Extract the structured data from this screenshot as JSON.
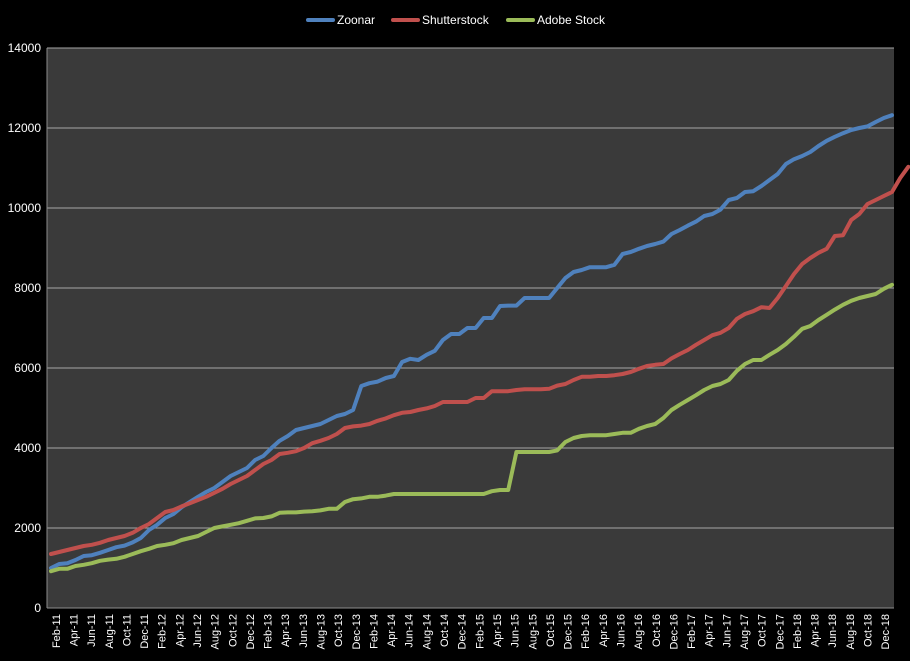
{
  "chart_data": {
    "type": "line",
    "title": "",
    "xlabel": "",
    "ylabel": "",
    "ylim": [
      0,
      14000
    ],
    "yticks": [
      0,
      2000,
      4000,
      6000,
      8000,
      10000,
      12000,
      14000
    ],
    "grid": "horizontal",
    "legend_position": "top-center",
    "x_tick_labels": [
      "Feb-11",
      "Apr-11",
      "Jun-11",
      "Aug-11",
      "Oct-11",
      "Dec-11",
      "Feb-12",
      "Apr-12",
      "Jun-12",
      "Aug-12",
      "Oct-12",
      "Dec-12",
      "Feb-13",
      "Apr-13",
      "Jun-13",
      "Aug-13",
      "Oct-13",
      "Dec-13",
      "Feb-14",
      "Apr-14",
      "Jun-14",
      "Aug-14",
      "Oct-14",
      "Dec-14",
      "Feb-15",
      "Apr-15",
      "Jun-15",
      "Aug-15",
      "Oct-15",
      "Dec-15",
      "Feb-16",
      "Apr-16",
      "Jun-16",
      "Aug-16",
      "Oct-16",
      "Dec-16",
      "Feb-17",
      "Apr-17",
      "Jun-17",
      "Aug-17",
      "Oct-17",
      "Dec-17",
      "Feb-18",
      "Apr-18",
      "Jun-18",
      "Aug-18",
      "Oct-18",
      "Dec-18"
    ],
    "colors": {
      "Zoonar": "#4f81bd",
      "Shutterstock": "#c0504d",
      "Adobe Stock": "#9bbb59"
    },
    "series": [
      {
        "name": "Zoonar",
        "values": [
          1000,
          1100,
          1120,
          1200,
          1300,
          1320,
          1380,
          1450,
          1520,
          1560,
          1640,
          1750,
          1950,
          2080,
          2250,
          2350,
          2520,
          2650,
          2780,
          2900,
          3000,
          3150,
          3300,
          3400,
          3500,
          3700,
          3800,
          4000,
          4180,
          4300,
          4450,
          4500,
          4550,
          4600,
          4700,
          4800,
          4850,
          4950,
          5550,
          5620,
          5660,
          5750,
          5800,
          6150,
          6230,
          6200,
          6330,
          6430,
          6700,
          6850,
          6850,
          7000,
          7000,
          7250,
          7250,
          7550,
          7560,
          7560,
          7750,
          7750,
          7750,
          7750,
          8000,
          8250,
          8400,
          8450,
          8520,
          8520,
          8520,
          8580,
          8850,
          8900,
          8980,
          9050,
          9100,
          9160,
          9350,
          9450,
          9560,
          9660,
          9800,
          9850,
          9960,
          10200,
          10250,
          10400,
          10420,
          10550,
          10700,
          10850,
          11100,
          11220,
          11300,
          11400,
          11550,
          11680,
          11780,
          11870,
          11950,
          12000,
          12040,
          12150,
          12250,
          12320
        ]
      },
      {
        "name": "Shutterstock",
        "values": [
          1350,
          1400,
          1450,
          1500,
          1550,
          1580,
          1630,
          1700,
          1750,
          1800,
          1880,
          2000,
          2100,
          2250,
          2400,
          2450,
          2540,
          2620,
          2700,
          2780,
          2880,
          2980,
          3100,
          3200,
          3300,
          3450,
          3600,
          3700,
          3850,
          3880,
          3920,
          4000,
          4120,
          4180,
          4250,
          4350,
          4500,
          4540,
          4560,
          4600,
          4680,
          4740,
          4820,
          4880,
          4900,
          4950,
          4990,
          5050,
          5150,
          5150,
          5150,
          5150,
          5250,
          5250,
          5420,
          5420,
          5420,
          5450,
          5470,
          5470,
          5470,
          5480,
          5560,
          5600,
          5700,
          5780,
          5780,
          5800,
          5800,
          5820,
          5850,
          5900,
          5980,
          6050,
          6080,
          6100,
          6240,
          6350,
          6450,
          6580,
          6700,
          6820,
          6880,
          7000,
          7230,
          7350,
          7420,
          7520,
          7500,
          7750,
          8050,
          8350,
          8600,
          8750,
          8880,
          8980,
          9300,
          9320,
          9700,
          9850,
          10100,
          10200,
          10300,
          10400,
          10750,
          11030
        ]
      },
      {
        "name": "Adobe Stock",
        "values": [
          920,
          980,
          980,
          1050,
          1080,
          1120,
          1180,
          1210,
          1230,
          1280,
          1350,
          1420,
          1480,
          1550,
          1580,
          1620,
          1700,
          1750,
          1800,
          1900,
          2000,
          2040,
          2080,
          2120,
          2180,
          2240,
          2250,
          2290,
          2380,
          2390,
          2390,
          2410,
          2420,
          2440,
          2480,
          2480,
          2650,
          2720,
          2740,
          2780,
          2780,
          2810,
          2850,
          2850,
          2850,
          2850,
          2850,
          2850,
          2850,
          2850,
          2850,
          2850,
          2850,
          2850,
          2920,
          2950,
          2950,
          3900,
          3900,
          3900,
          3900,
          3900,
          3940,
          4150,
          4250,
          4300,
          4320,
          4320,
          4320,
          4350,
          4380,
          4380,
          4480,
          4550,
          4600,
          4750,
          4950,
          5080,
          5200,
          5320,
          5450,
          5550,
          5600,
          5700,
          5930,
          6100,
          6200,
          6200,
          6330,
          6450,
          6600,
          6780,
          6980,
          7050,
          7200,
          7330,
          7460,
          7580,
          7680,
          7750,
          7800,
          7850,
          7980,
          8080
        ]
      }
    ]
  }
}
